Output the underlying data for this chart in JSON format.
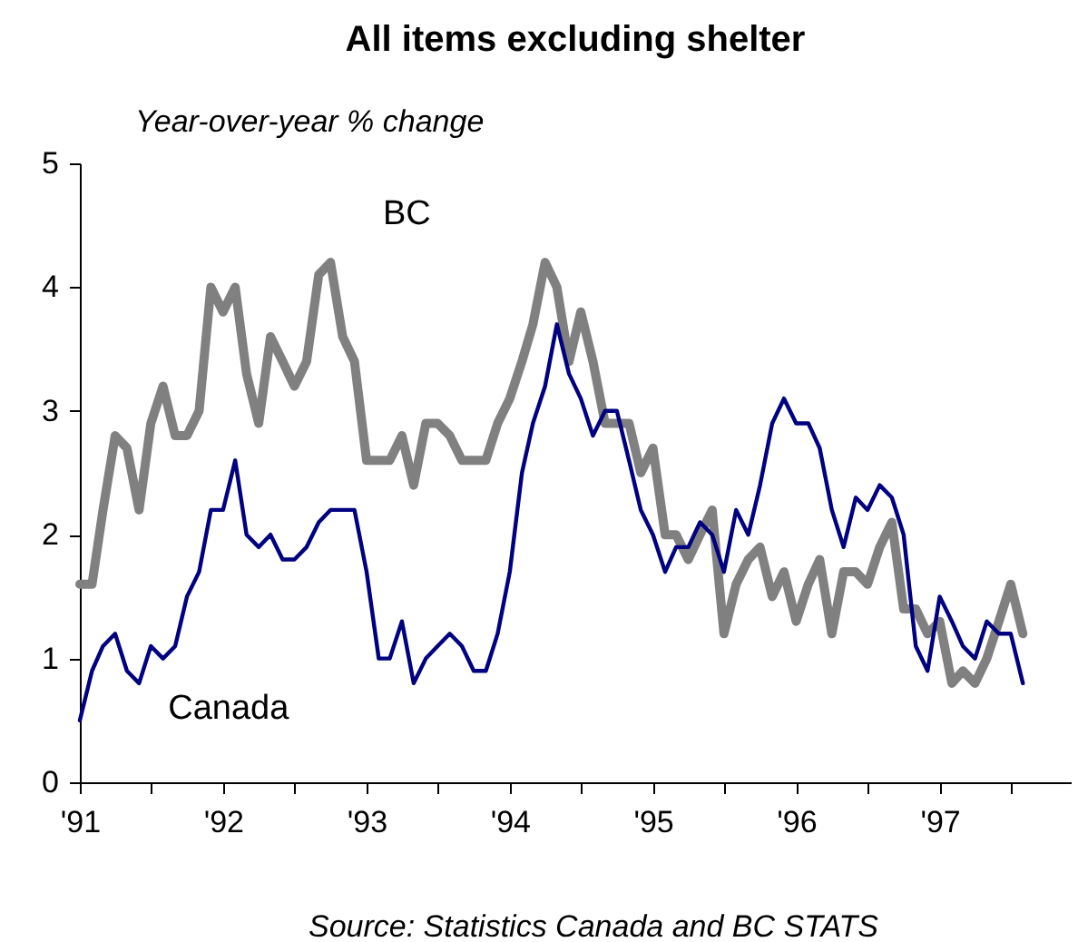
{
  "chart_data": {
    "type": "line",
    "title": "All items excluding shelter",
    "ylabel": "Year-over-year % change",
    "annotations": [
      "Source: Statistics Canada and BC STATS"
    ],
    "x": [
      "1991-01",
      "1991-02",
      "1991-03",
      "1991-04",
      "1991-05",
      "1991-06",
      "1991-07",
      "1991-08",
      "1991-09",
      "1991-10",
      "1991-11",
      "1991-12",
      "1992-01",
      "1992-02",
      "1992-03",
      "1992-04",
      "1992-05",
      "1992-06",
      "1992-07",
      "1992-08",
      "1992-09",
      "1992-10",
      "1992-11",
      "1992-12",
      "1993-01",
      "1993-02",
      "1993-03",
      "1993-04",
      "1993-05",
      "1993-06",
      "1993-07",
      "1993-08",
      "1993-09",
      "1993-10",
      "1993-11",
      "1993-12",
      "1994-01",
      "1994-02",
      "1994-03",
      "1994-04",
      "1994-05",
      "1994-06",
      "1994-07",
      "1994-08",
      "1994-09",
      "1994-10",
      "1994-11",
      "1994-12",
      "1995-01",
      "1995-02",
      "1995-03",
      "1995-04",
      "1995-05",
      "1995-06",
      "1995-07",
      "1995-08",
      "1995-09",
      "1995-10",
      "1995-11",
      "1995-12",
      "1996-01",
      "1996-02",
      "1996-03",
      "1996-04",
      "1996-05",
      "1996-06",
      "1996-07",
      "1996-08",
      "1996-09",
      "1996-10",
      "1996-11",
      "1996-12",
      "1997-01",
      "1997-02",
      "1997-03",
      "1997-04",
      "1997-05",
      "1997-06",
      "1997-07",
      "1997-08"
    ],
    "series": [
      {
        "name": "BC",
        "color": "#808080",
        "values": [
          1.6,
          1.6,
          2.2,
          2.8,
          2.7,
          2.2,
          2.9,
          3.2,
          2.8,
          2.8,
          3.0,
          4.0,
          3.8,
          4.0,
          3.3,
          2.9,
          3.6,
          3.4,
          3.2,
          3.4,
          4.1,
          4.2,
          3.6,
          3.4,
          2.6,
          2.6,
          2.6,
          2.8,
          2.4,
          2.9,
          2.9,
          2.8,
          2.6,
          2.6,
          2.6,
          2.9,
          3.1,
          3.4,
          3.7,
          4.2,
          4.0,
          3.4,
          3.8,
          3.4,
          2.9,
          2.9,
          2.9,
          2.5,
          2.7,
          2.0,
          2.0,
          1.8,
          2.0,
          2.2,
          1.2,
          1.6,
          1.8,
          1.9,
          1.5,
          1.7,
          1.3,
          1.6,
          1.8,
          1.2,
          1.7,
          1.7,
          1.6,
          1.9,
          2.1,
          1.4,
          1.4,
          1.2,
          1.3,
          0.8,
          0.9,
          0.8,
          1.0,
          1.3,
          1.6,
          1.2
        ]
      },
      {
        "name": "Canada",
        "color": "#000080",
        "values": [
          0.5,
          0.9,
          1.1,
          1.2,
          0.9,
          0.8,
          1.1,
          1.0,
          1.1,
          1.5,
          1.7,
          2.2,
          2.2,
          2.6,
          2.0,
          1.9,
          2.0,
          1.8,
          1.8,
          1.9,
          2.1,
          2.2,
          2.2,
          2.2,
          1.7,
          1.0,
          1.0,
          1.3,
          0.8,
          1.0,
          1.1,
          1.2,
          1.1,
          0.9,
          0.9,
          1.2,
          1.7,
          2.5,
          2.9,
          3.2,
          3.7,
          3.3,
          3.1,
          2.8,
          3.0,
          3.0,
          2.6,
          2.2,
          2.0,
          1.7,
          1.9,
          1.9,
          2.1,
          2.0,
          1.7,
          2.2,
          2.0,
          2.4,
          2.9,
          3.1,
          2.9,
          2.9,
          2.7,
          2.2,
          1.9,
          2.3,
          2.2,
          2.4,
          2.3,
          2.0,
          1.1,
          0.9,
          1.5,
          1.3,
          1.1,
          1.0,
          1.3,
          1.2,
          1.2,
          0.8
        ]
      }
    ],
    "xlim": [
      "1991-01",
      "1997-12"
    ],
    "xticks": [
      {
        "value": "1991-01",
        "label": "'91"
      },
      {
        "value": "1991-07",
        "label": null
      },
      {
        "value": "1992-01",
        "label": "'92"
      },
      {
        "value": "1992-07",
        "label": null
      },
      {
        "value": "1993-01",
        "label": "'93"
      },
      {
        "value": "1993-07",
        "label": null
      },
      {
        "value": "1994-01",
        "label": "'94"
      },
      {
        "value": "1994-07",
        "label": null
      },
      {
        "value": "1995-01",
        "label": "'95"
      },
      {
        "value": "1995-07",
        "label": null
      },
      {
        "value": "1996-01",
        "label": "'96"
      },
      {
        "value": "1996-07",
        "label": null
      },
      {
        "value": "1997-01",
        "label": "'97"
      },
      {
        "value": "1997-07",
        "label": null
      }
    ],
    "ylim": [
      0,
      5
    ],
    "yticks": [
      0,
      1,
      2,
      3,
      4,
      5
    ],
    "grid": false,
    "legend": false,
    "marker": "none",
    "line_style": "solid"
  }
}
